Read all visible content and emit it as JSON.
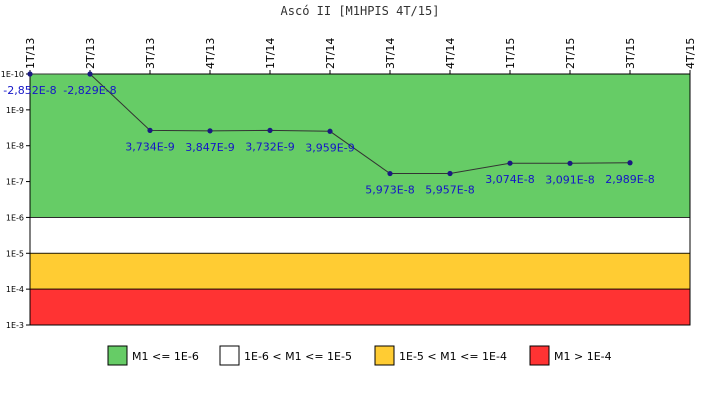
{
  "chart_data": {
    "type": "line",
    "title": "Ascó II [M1HPIS 4T/15]",
    "x_categories": [
      "1T/13",
      "2T/13",
      "3T/13",
      "4T/13",
      "1T/14",
      "2T/14",
      "3T/14",
      "4T/14",
      "1T/15",
      "2T/15",
      "3T/15",
      "4T/15"
    ],
    "y_scale": "log",
    "y_inverted": true,
    "y_ticks": [
      {
        "label": "1E-10",
        "exp": -10
      },
      {
        "label": "1E-9",
        "exp": -9
      },
      {
        "label": "1E-8",
        "exp": -8
      },
      {
        "label": "1E-7",
        "exp": -7
      },
      {
        "label": "1E-6",
        "exp": -6
      },
      {
        "label": "1E-5",
        "exp": -5
      },
      {
        "label": "1E-4",
        "exp": -4
      },
      {
        "label": "1E-3",
        "exp": -3
      }
    ],
    "ylim": [
      1e-10,
      0.001
    ],
    "series": [
      {
        "values": [
          {
            "x": "1T/13",
            "y": 1e-10,
            "label": "-2,852E-8"
          },
          {
            "x": "2T/13",
            "y": 1e-10,
            "label": "-2,829E-8"
          },
          {
            "x": "3T/13",
            "y": 3.734e-09,
            "label": "3,734E-9"
          },
          {
            "x": "4T/13",
            "y": 3.847e-09,
            "label": "3,847E-9"
          },
          {
            "x": "1T/14",
            "y": 3.732e-09,
            "label": "3,732E-9"
          },
          {
            "x": "2T/14",
            "y": 3.959e-09,
            "label": "3,959E-9"
          },
          {
            "x": "3T/14",
            "y": 5.973e-08,
            "label": "5,973E-8"
          },
          {
            "x": "4T/14",
            "y": 5.957e-08,
            "label": "5,957E-8"
          },
          {
            "x": "1T/15",
            "y": 3.074e-08,
            "label": "3,074E-8"
          },
          {
            "x": "2T/15",
            "y": 3.091e-08,
            "label": "3,091E-8"
          },
          {
            "x": "3T/15",
            "y": 2.989e-08,
            "label": "2,989E-8"
          }
        ]
      }
    ],
    "bands": [
      {
        "label": "M1 <= 1E-6",
        "from_exp": -10,
        "to_exp": -6,
        "color": "#66cc66"
      },
      {
        "label": "1E-6 < M1 <= 1E-5",
        "from_exp": -6,
        "to_exp": -5,
        "color": "#ffffff"
      },
      {
        "label": "1E-5 < M1 <= 1E-4",
        "from_exp": -5,
        "to_exp": -4,
        "color": "#ffcc33"
      },
      {
        "label": "M1 > 1E-4",
        "from_exp": -4,
        "to_exp": -3,
        "color": "#ff3333"
      }
    ],
    "line_color": "#333333",
    "point_color": "#1a1a80",
    "label_color": "#1515c8",
    "grid": false,
    "legend_position": "bottom"
  }
}
